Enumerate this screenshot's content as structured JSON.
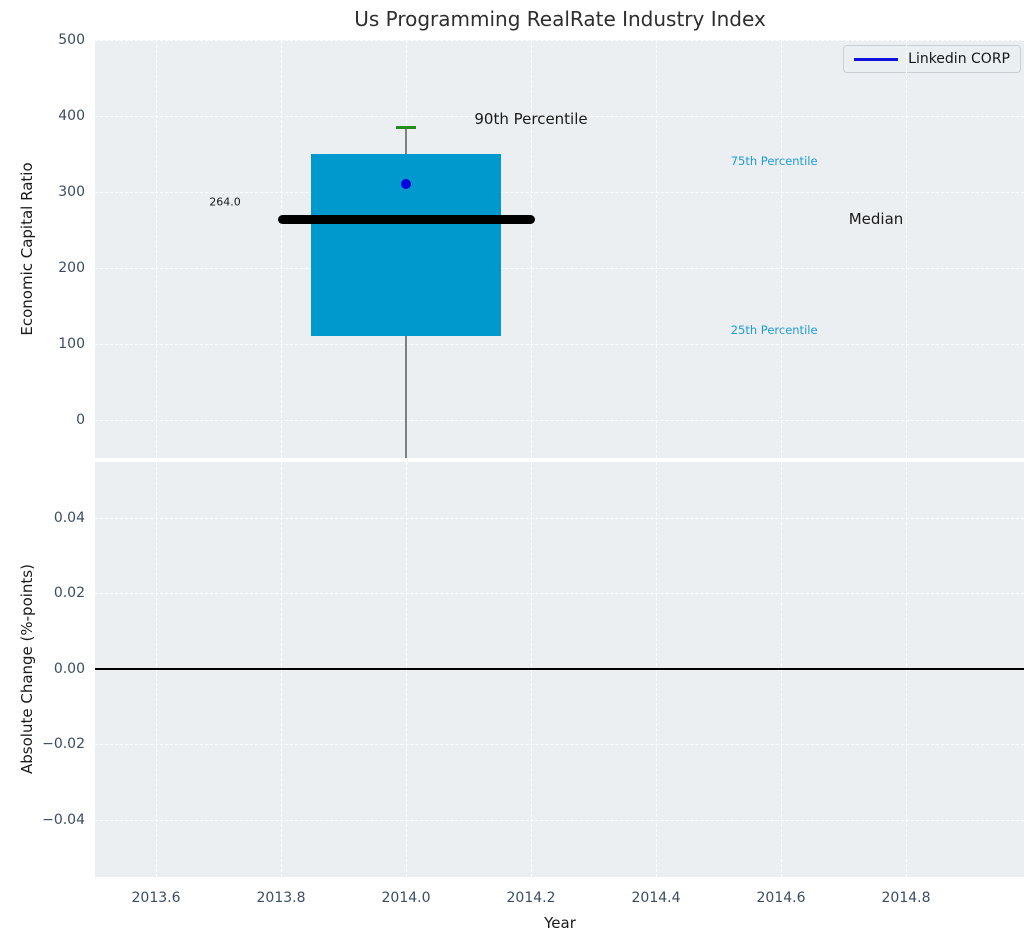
{
  "title": "Us Programming RealRate Industry Index",
  "legend": {
    "label": "Linkedin CORP",
    "line_color": "#1212de"
  },
  "colors": {
    "axes_bg": "#ebeff2",
    "grid": "#ffffff",
    "tick_text": "#3d4c60",
    "box_fill": "#0099ce",
    "median_line": "#000000",
    "whisker": "#808080",
    "cap_90th": "#228b22",
    "company_dot": "#0000dd",
    "percentile_text": "#1e9cd2",
    "dark_text": "#1a1a1a"
  },
  "chart_data": [
    {
      "type": "boxplot",
      "title": "Us Programming RealRate Industry Index",
      "ylabel": "Economic Capital Ratio",
      "xlim": [
        2013.5024,
        2014.9888
      ],
      "ylim": [
        -50,
        500
      ],
      "grid": true,
      "legend_position": "upper right",
      "legend_entries": [
        "Linkedin CORP"
      ],
      "yticks": [
        {
          "v": 0,
          "label": "0"
        },
        {
          "v": 100,
          "label": "100"
        },
        {
          "v": 200,
          "label": "200"
        },
        {
          "v": 300,
          "label": "300"
        },
        {
          "v": 400,
          "label": "400"
        },
        {
          "v": 500,
          "label": "500"
        }
      ],
      "xticks": [
        {
          "v": 2013.6,
          "label": "2013.6"
        },
        {
          "v": 2013.8,
          "label": "2013.8"
        },
        {
          "v": 2014.0,
          "label": "2014.0"
        },
        {
          "v": 2014.2,
          "label": "2014.2"
        },
        {
          "v": 2014.4,
          "label": "2014.4"
        },
        {
          "v": 2014.6,
          "label": "2014.6"
        },
        {
          "v": 2014.8,
          "label": "2014.8"
        }
      ],
      "box": {
        "x": 2014.0,
        "p90": 385,
        "p75": 350,
        "median": 264,
        "p25": 110,
        "company_value": 310,
        "median_label": "264.0",
        "whisker_low_clipped": true,
        "box_half_width": 0.152,
        "median_half_width": 0.2056,
        "cap_half_width": 0.016
      },
      "annotations": [
        {
          "text": "90th Percentile",
          "x": 2014.2,
          "y": 396,
          "cls": "dark",
          "size": 15
        },
        {
          "text": "75th Percentile",
          "x": 2014.589,
          "y": 341,
          "cls": "cyan",
          "size": 11.5
        },
        {
          "text": "Median",
          "x": 2014.752,
          "y": 264,
          "cls": "dark",
          "size": 15
        },
        {
          "text": "25th Percentile",
          "x": 2014.589,
          "y": 118,
          "cls": "cyan",
          "size": 11.5
        },
        {
          "text": "264.0",
          "x": 2013.7104,
          "y": 287,
          "cls": "dark",
          "size": 11
        }
      ]
    },
    {
      "type": "line",
      "ylabel": "Absolute Change (%-points)",
      "xlabel": "Year",
      "xlim": [
        2013.5024,
        2014.9888
      ],
      "ylim": [
        -0.0551,
        0.0548
      ],
      "grid": true,
      "zero_line": 0.0,
      "yticks": [
        {
          "v": -0.04,
          "label": "−0.04"
        },
        {
          "v": -0.02,
          "label": "−0.02"
        },
        {
          "v": 0.0,
          "label": "0.00"
        },
        {
          "v": 0.02,
          "label": "0.02"
        },
        {
          "v": 0.04,
          "label": "0.04"
        }
      ],
      "xticks": [
        {
          "v": 2013.6,
          "label": "2013.6"
        },
        {
          "v": 2013.8,
          "label": "2013.8"
        },
        {
          "v": 2014.0,
          "label": "2014.0"
        },
        {
          "v": 2014.2,
          "label": "2014.2"
        },
        {
          "v": 2014.4,
          "label": "2014.4"
        },
        {
          "v": 2014.6,
          "label": "2014.6"
        },
        {
          "v": 2014.8,
          "label": "2014.8"
        }
      ]
    }
  ]
}
